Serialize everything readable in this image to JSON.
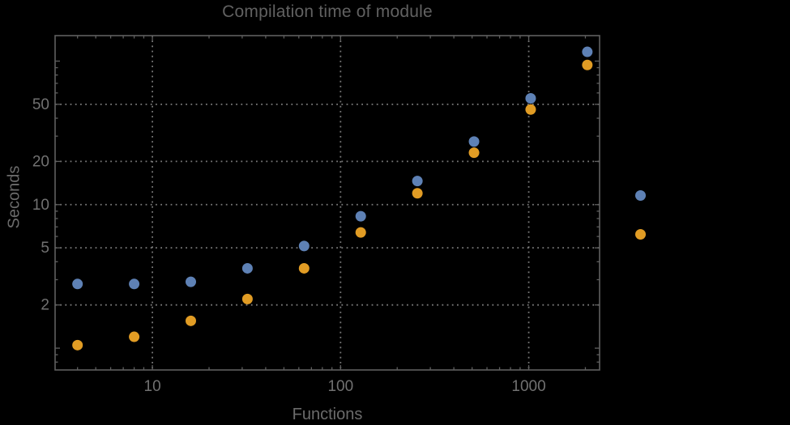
{
  "title": "Compilation time of module",
  "axes": {
    "x_label": "Functions",
    "y_label": "Seconds"
  },
  "chart_data": {
    "type": "scatter",
    "title": "Compilation time of module",
    "xlabel": "Functions",
    "ylabel": "Seconds",
    "x_scale": "log",
    "y_scale": "log",
    "xlim": [
      3.04,
      2380
    ],
    "ylim": [
      0.705,
      150.5
    ],
    "grid": "dotted",
    "x": [
      4,
      8,
      16,
      32,
      64,
      128,
      256,
      512,
      1024,
      2048
    ],
    "series": [
      {
        "color": "#5E81B5",
        "values": [
          2.8,
          2.8,
          2.9,
          3.6,
          5.15,
          8.3,
          14.6,
          27.5,
          55,
          116
        ]
      },
      {
        "color": "#E19C24",
        "values": [
          1.05,
          1.2,
          1.55,
          2.2,
          3.6,
          6.4,
          12,
          23,
          46,
          94
        ]
      }
    ],
    "x_ticks": [
      {
        "value": 10,
        "label": "10"
      },
      {
        "value": 100,
        "label": "100"
      },
      {
        "value": 1000,
        "label": "1000"
      }
    ],
    "y_ticks": [
      {
        "value": 2,
        "label": "2"
      },
      {
        "value": 5,
        "label": "5"
      },
      {
        "value": 10,
        "label": "10"
      },
      {
        "value": 20,
        "label": "20"
      },
      {
        "value": 50,
        "label": "50"
      }
    ],
    "x_minor_ticks": [
      4,
      5,
      6,
      7,
      8,
      9,
      20,
      30,
      40,
      50,
      60,
      70,
      80,
      90,
      200,
      300,
      400,
      500,
      600,
      700,
      800,
      900,
      2000
    ],
    "y_minor_ticks": [
      0.8,
      0.9,
      3,
      4,
      6,
      7,
      8,
      9,
      30,
      40,
      60,
      70,
      80,
      90
    ],
    "y_unlabeled_major_ticks": [
      1,
      100
    ],
    "legend_position": "right"
  },
  "legend": {
    "markers": [
      {
        "color": "#5E81B5"
      },
      {
        "color": "#E19C24"
      }
    ]
  },
  "colors": {
    "background": "#000000",
    "frame": "#5f5f5f",
    "grid": "#8f8f8f",
    "tick_label": "#717171",
    "title": "#616161",
    "series_blue": "#5E81B5",
    "series_orange": "#E19C24"
  }
}
